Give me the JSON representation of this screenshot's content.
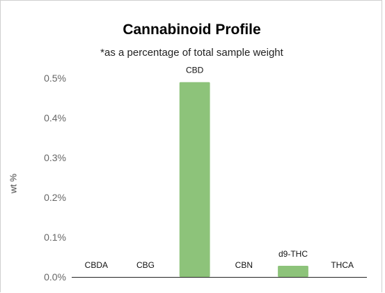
{
  "chart_data": {
    "type": "bar",
    "title": "Cannabinoid Profile",
    "subtitle": "*as a percentage of total sample weight",
    "ylabel": "wt %",
    "xlabel": "",
    "categories": [
      "CBDA",
      "CBG",
      "CBD",
      "CBN",
      "d9-THC",
      "THCA"
    ],
    "values": [
      0.0,
      0.0,
      0.49,
      0.0,
      0.028,
      0.0
    ],
    "ylim": [
      0,
      0.5
    ],
    "yticks": [
      "0.0%",
      "0.1%",
      "0.2%",
      "0.3%",
      "0.4%",
      "0.5%"
    ],
    "grid": false,
    "legend": "none",
    "bar_color": "#8dc37a"
  }
}
